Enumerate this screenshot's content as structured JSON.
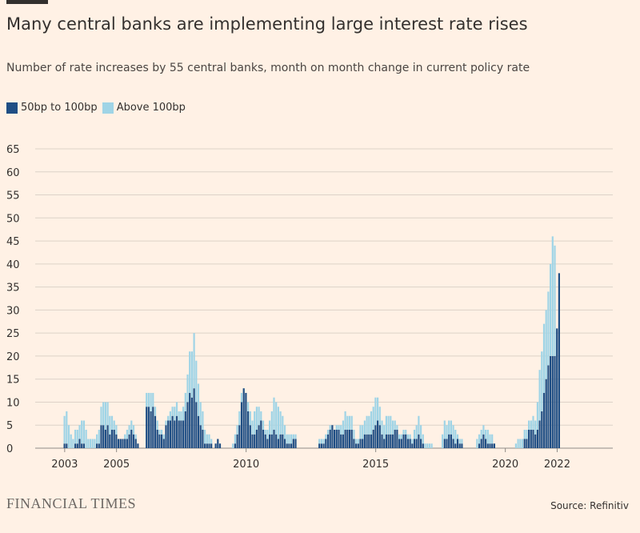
{
  "header": {
    "title": "Many central banks are implementing large interest rate rises",
    "subtitle": "Number of rate increases by 55 central banks, month on month change in current policy rate"
  },
  "legend": [
    {
      "label": "50bp to 100bp",
      "color": "#1F4E84"
    },
    {
      "label": "Above 100bp",
      "color": "#9FD4E6"
    }
  ],
  "footer": {
    "brand": "FINANCIAL TIMES",
    "source": "Source: Refinitiv"
  },
  "chart_data": {
    "type": "bar",
    "stacked": true,
    "title": "Many central banks are implementing large interest rate rises",
    "subtitle": "Number of rate increases by 55 central banks, month on month change in current policy rate",
    "ylim": [
      0,
      65
    ],
    "yticks": [
      0,
      5,
      10,
      15,
      20,
      25,
      30,
      35,
      40,
      45,
      50,
      55,
      60,
      65
    ],
    "xticks": [
      {
        "label": "2003",
        "index": 0
      },
      {
        "label": "2005",
        "index": 24
      },
      {
        "label": "2010",
        "index": 84
      },
      {
        "label": "2015",
        "index": 144
      },
      {
        "label": "2020",
        "index": 204
      },
      {
        "label": "2022",
        "index": 228
      }
    ],
    "grid": true,
    "legend_position": "top-left",
    "period": "monthly, Jan 2003 - Sep 2022",
    "series": [
      {
        "name": "50bp to 100bp",
        "color": "#1F4E84",
        "values": [
          1,
          1,
          0,
          0,
          0,
          1,
          1,
          2,
          1,
          1,
          0,
          0,
          0,
          0,
          0,
          1,
          1,
          5,
          5,
          4,
          5,
          3,
          4,
          4,
          3,
          2,
          2,
          2,
          2,
          2,
          3,
          4,
          3,
          2,
          1,
          0,
          0,
          0,
          9,
          9,
          8,
          9,
          7,
          4,
          3,
          3,
          2,
          5,
          6,
          6,
          7,
          6,
          7,
          6,
          6,
          6,
          8,
          10,
          12,
          11,
          13,
          10,
          7,
          5,
          4,
          1,
          1,
          1,
          1,
          0,
          1,
          2,
          1,
          0,
          0,
          0,
          0,
          0,
          0,
          1,
          3,
          5,
          10,
          13,
          12,
          8,
          5,
          3,
          3,
          4,
          5,
          6,
          4,
          3,
          2,
          3,
          3,
          4,
          3,
          2,
          3,
          3,
          2,
          1,
          1,
          1,
          2,
          2,
          0,
          0,
          0,
          0,
          0,
          0,
          0,
          0,
          0,
          0,
          1,
          1,
          1,
          2,
          3,
          4,
          5,
          4,
          4,
          4,
          3,
          3,
          4,
          4,
          4,
          4,
          2,
          1,
          1,
          2,
          2,
          3,
          3,
          3,
          3,
          4,
          5,
          6,
          5,
          3,
          2,
          3,
          3,
          3,
          3,
          4,
          4,
          2,
          2,
          3,
          3,
          2,
          2,
          1,
          2,
          2,
          3,
          2,
          1,
          0,
          0,
          0,
          0,
          0,
          0,
          0,
          0,
          0,
          2,
          2,
          3,
          3,
          2,
          1,
          2,
          1,
          1,
          0,
          0,
          0,
          0,
          0,
          0,
          0,
          1,
          2,
          3,
          2,
          1,
          1,
          1,
          1,
          0,
          0,
          0,
          0,
          0,
          0,
          0,
          0,
          0,
          0,
          0,
          0,
          0,
          2,
          2,
          4,
          4,
          4,
          3,
          4,
          6,
          8,
          12,
          15,
          18,
          20,
          20,
          20,
          26,
          38
        ]
      },
      {
        "name": "Above 100bp",
        "color": "#9FD4E6",
        "values": [
          6,
          7,
          5,
          3,
          2,
          3,
          3,
          3,
          5,
          5,
          4,
          2,
          2,
          2,
          2,
          2,
          3,
          4,
          5,
          6,
          5,
          4,
          3,
          2,
          2,
          0,
          0,
          0,
          1,
          2,
          2,
          2,
          2,
          1,
          0,
          0,
          0,
          0,
          3,
          3,
          4,
          3,
          2,
          2,
          1,
          1,
          1,
          1,
          1,
          2,
          2,
          3,
          3,
          2,
          2,
          3,
          4,
          6,
          9,
          10,
          12,
          9,
          7,
          5,
          4,
          3,
          2,
          2,
          1,
          0,
          0,
          0,
          0,
          0,
          0,
          0,
          0,
          0,
          1,
          2,
          2,
          3,
          2,
          0,
          0,
          2,
          3,
          3,
          5,
          5,
          4,
          2,
          2,
          1,
          2,
          3,
          5,
          7,
          7,
          7,
          5,
          4,
          3,
          2,
          2,
          2,
          1,
          1,
          0,
          0,
          0,
          0,
          0,
          0,
          0,
          0,
          0,
          0,
          1,
          1,
          1,
          1,
          1,
          1,
          0,
          0,
          1,
          1,
          2,
          3,
          4,
          3,
          3,
          3,
          2,
          1,
          1,
          3,
          3,
          3,
          4,
          4,
          5,
          5,
          6,
          5,
          4,
          3,
          3,
          4,
          4,
          4,
          3,
          2,
          1,
          1,
          1,
          1,
          1,
          1,
          1,
          1,
          2,
          3,
          4,
          3,
          2,
          1,
          1,
          1,
          1,
          0,
          0,
          0,
          0,
          3,
          4,
          3,
          3,
          3,
          3,
          3,
          1,
          1,
          1,
          0,
          0,
          0,
          0,
          0,
          0,
          2,
          2,
          2,
          2,
          2,
          3,
          2,
          2,
          0,
          0,
          0,
          0,
          0,
          0,
          0,
          0,
          0,
          0,
          1,
          2,
          2,
          2,
          2,
          2,
          2,
          2,
          3,
          3,
          6,
          11,
          13,
          15,
          15,
          16,
          20,
          26,
          24
        ]
      }
    ]
  }
}
